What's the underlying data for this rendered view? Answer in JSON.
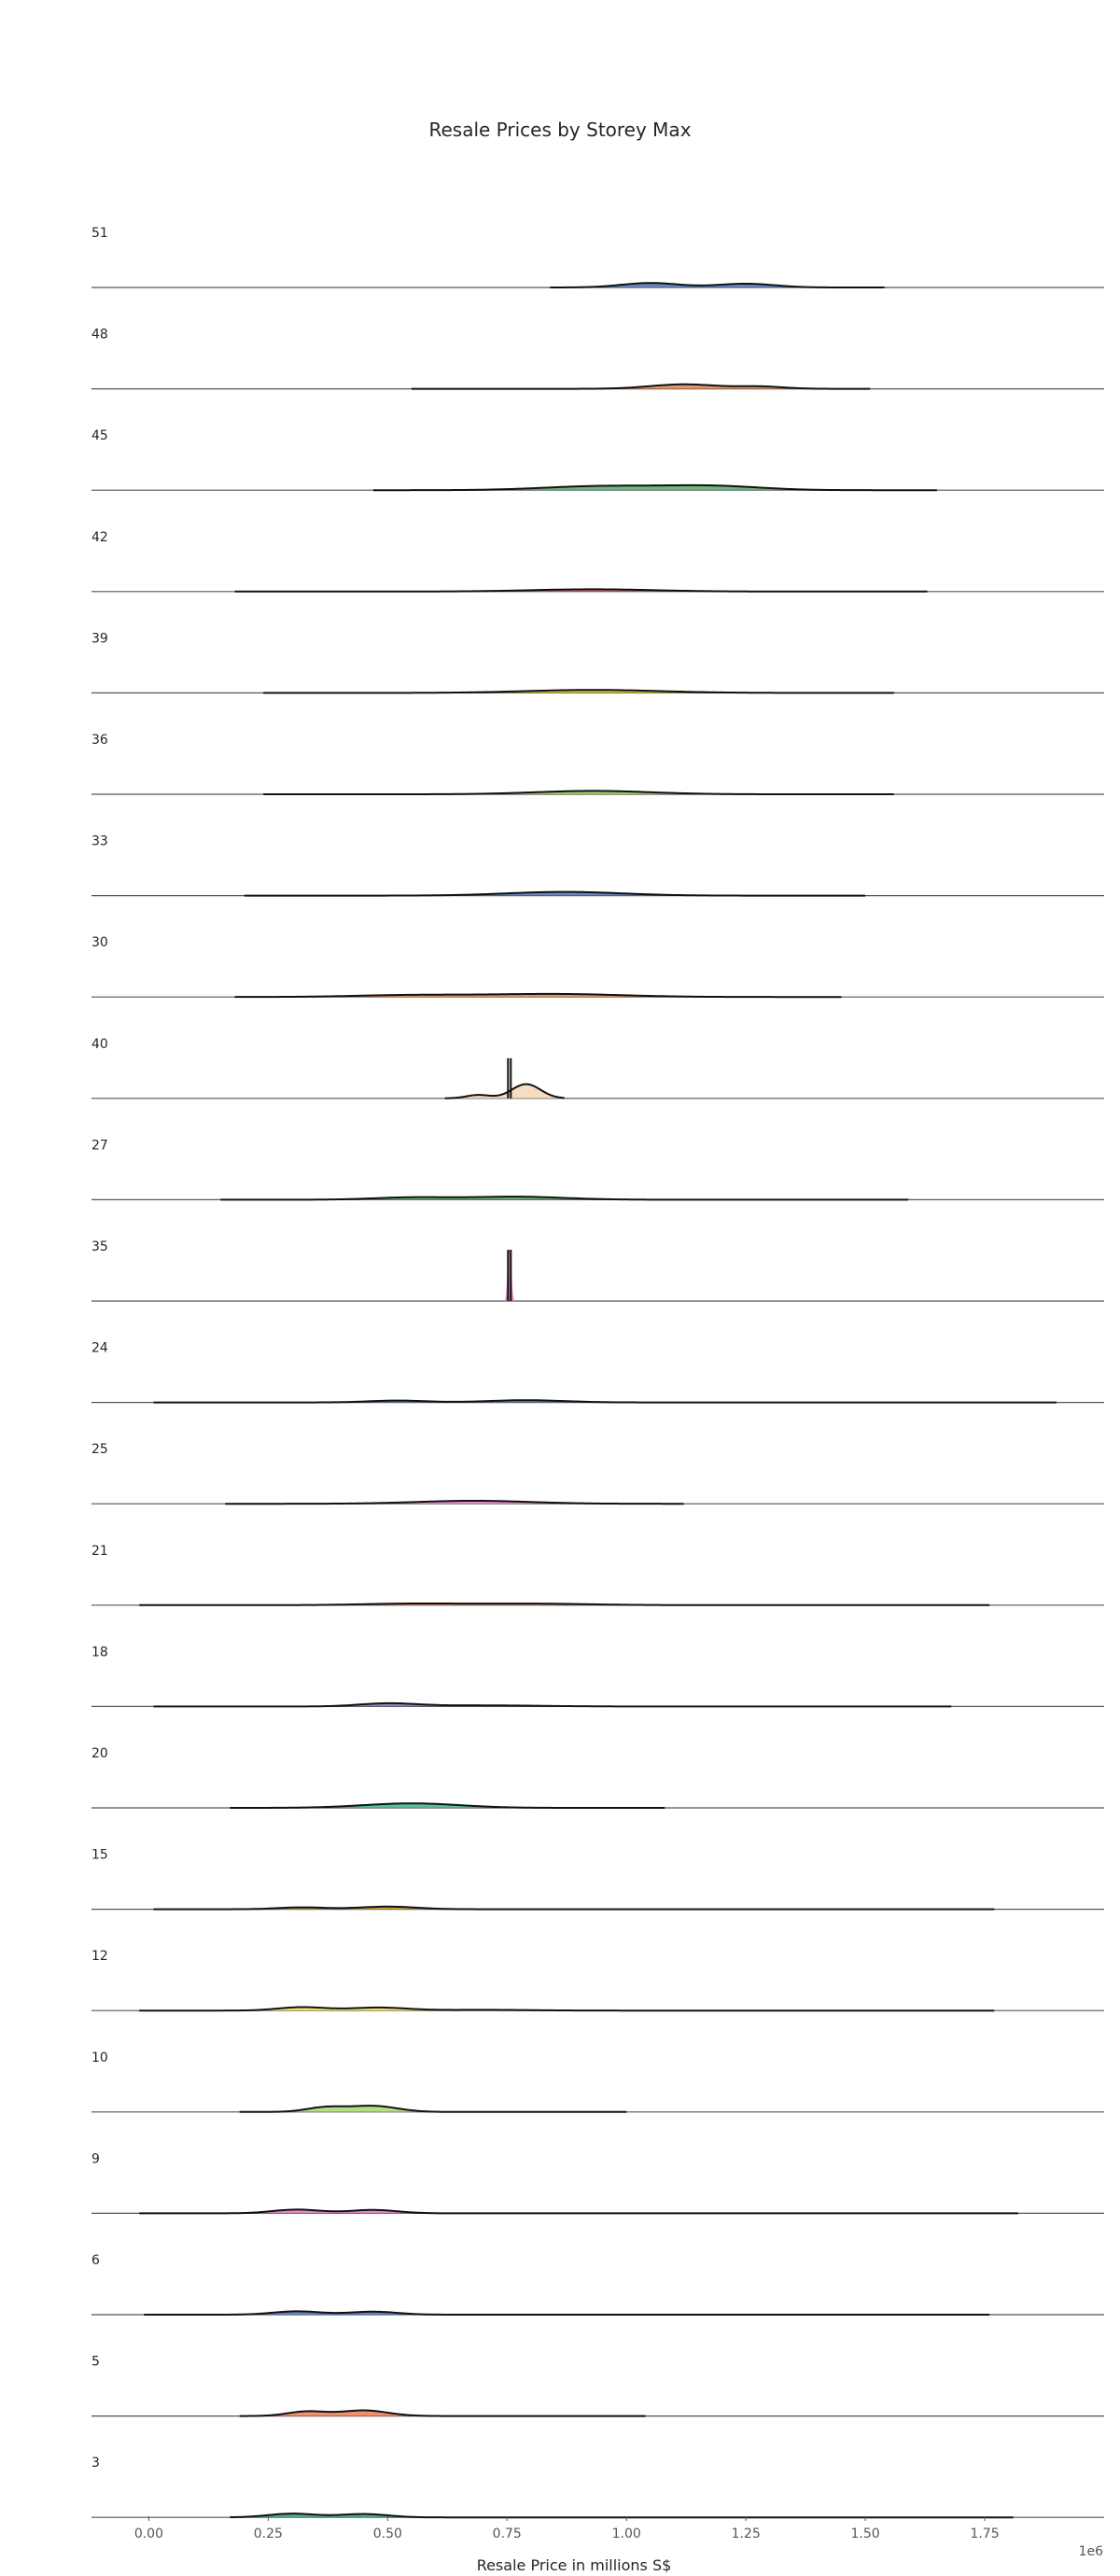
{
  "chart_data": {
    "type": "ridgeline",
    "title": "Resale Prices by Storey Max",
    "xlabel": "Resale Price in millions S$",
    "x_offset_label": "1e6",
    "xlim": [
      -0.12,
      2.0
    ],
    "x_ticks": [
      0.0,
      0.25,
      0.5,
      0.75,
      1.0,
      1.25,
      1.5,
      1.75
    ],
    "x_tick_labels": [
      "0.00",
      "0.25",
      "0.50",
      "0.75",
      "1.00",
      "1.25",
      "1.50",
      "1.75"
    ],
    "grid": false,
    "series": [
      {
        "name": "51",
        "color": "#4c72b0",
        "range": [
          0.84,
          1.54
        ],
        "peaks": [
          [
            1.05,
            0.12,
            0.06
          ],
          [
            1.25,
            0.1,
            0.06
          ]
        ]
      },
      {
        "name": "48",
        "color": "#dd8452",
        "range": [
          0.55,
          1.51
        ],
        "peaks": [
          [
            1.12,
            0.12,
            0.07
          ],
          [
            1.28,
            0.06,
            0.05
          ]
        ]
      },
      {
        "name": "45",
        "color": "#55a868",
        "range": [
          0.47,
          1.65
        ],
        "peaks": [
          [
            0.95,
            0.11,
            0.12
          ],
          [
            1.18,
            0.11,
            0.1
          ]
        ]
      },
      {
        "name": "42",
        "color": "#c44e52",
        "range": [
          0.18,
          1.63
        ],
        "peaks": [
          [
            0.93,
            0.06,
            0.13
          ]
        ]
      },
      {
        "name": "39",
        "color": "#cfc11d",
        "range": [
          0.24,
          1.56
        ],
        "peaks": [
          [
            0.93,
            0.08,
            0.14
          ]
        ]
      },
      {
        "name": "36",
        "color": "#8dc63f",
        "range": [
          0.24,
          1.56
        ],
        "peaks": [
          [
            0.93,
            0.09,
            0.12
          ]
        ]
      },
      {
        "name": "33",
        "color": "#4c72b0",
        "range": [
          0.2,
          1.5
        ],
        "peaks": [
          [
            0.87,
            0.1,
            0.12
          ]
        ]
      },
      {
        "name": "30",
        "color": "#dd8452",
        "range": [
          0.18,
          1.45
        ],
        "peaks": [
          [
            0.55,
            0.05,
            0.12
          ],
          [
            0.85,
            0.08,
            0.14
          ]
        ]
      },
      {
        "name": "40",
        "color": "#f5d6b5",
        "range": [
          0.62,
          0.87
        ],
        "peaks": [
          [
            0.69,
            0.09,
            0.025
          ],
          [
            0.79,
            0.38,
            0.03
          ]
        ],
        "spike": true,
        "spike_x": 0.755,
        "spike_height": 0.72
      },
      {
        "name": "27",
        "color": "#55a868",
        "range": [
          0.15,
          1.59
        ],
        "peaks": [
          [
            0.55,
            0.06,
            0.08
          ],
          [
            0.77,
            0.08,
            0.1
          ]
        ]
      },
      {
        "name": "35",
        "color": "#e377c2",
        "range": [
          0.75,
          0.76
        ],
        "peaks": [],
        "spike": true,
        "spike_x": 0.755,
        "spike_height": 0.92,
        "spike_fill": true
      },
      {
        "name": "24",
        "color": "#4c72b0",
        "range": [
          0.01,
          1.9
        ],
        "peaks": [
          [
            0.52,
            0.05,
            0.06
          ],
          [
            0.79,
            0.06,
            0.08
          ]
        ]
      },
      {
        "name": "25",
        "color": "#e377c2",
        "range": [
          0.16,
          1.12
        ],
        "peaks": [
          [
            0.68,
            0.08,
            0.12
          ]
        ]
      },
      {
        "name": "21",
        "color": "#dd8452",
        "range": [
          -0.02,
          1.76
        ],
        "peaks": [
          [
            0.55,
            0.04,
            0.1
          ],
          [
            0.8,
            0.04,
            0.12
          ]
        ]
      },
      {
        "name": "18",
        "color": "#8172b2",
        "range": [
          0.01,
          1.68
        ],
        "peaks": [
          [
            0.5,
            0.08,
            0.06
          ],
          [
            0.7,
            0.03,
            0.12
          ]
        ]
      },
      {
        "name": "20",
        "color": "#3bb58f",
        "range": [
          0.17,
          1.08
        ],
        "peaks": [
          [
            0.55,
            0.12,
            0.1
          ]
        ]
      },
      {
        "name": "15",
        "color": "#c49a1c",
        "range": [
          0.01,
          1.77
        ],
        "peaks": [
          [
            0.32,
            0.05,
            0.05
          ],
          [
            0.5,
            0.07,
            0.06
          ]
        ]
      },
      {
        "name": "12",
        "color": "#f2e04a",
        "range": [
          -0.02,
          1.77
        ],
        "peaks": [
          [
            0.32,
            0.09,
            0.05
          ],
          [
            0.48,
            0.08,
            0.06
          ],
          [
            0.7,
            0.02,
            0.1
          ]
        ]
      },
      {
        "name": "10",
        "color": "#a8d86e",
        "range": [
          0.19,
          1.0
        ],
        "peaks": [
          [
            0.37,
            0.12,
            0.04
          ],
          [
            0.47,
            0.16,
            0.05
          ]
        ]
      },
      {
        "name": "9",
        "color": "#e377c2",
        "range": [
          -0.02,
          1.82
        ],
        "peaks": [
          [
            0.31,
            0.1,
            0.05
          ],
          [
            0.47,
            0.09,
            0.05
          ]
        ]
      },
      {
        "name": "6",
        "color": "#4c72b0",
        "range": [
          -0.01,
          1.76
        ],
        "peaks": [
          [
            0.31,
            0.09,
            0.05
          ],
          [
            0.47,
            0.08,
            0.05
          ]
        ]
      },
      {
        "name": "5",
        "color": "#ee7a55",
        "range": [
          0.19,
          1.04
        ],
        "peaks": [
          [
            0.33,
            0.12,
            0.04
          ],
          [
            0.45,
            0.15,
            0.05
          ]
        ]
      },
      {
        "name": "3",
        "color": "#3a9a7a",
        "range": [
          0.17,
          1.81
        ],
        "peaks": [
          [
            0.3,
            0.1,
            0.05
          ],
          [
            0.45,
            0.09,
            0.05
          ]
        ]
      }
    ]
  }
}
